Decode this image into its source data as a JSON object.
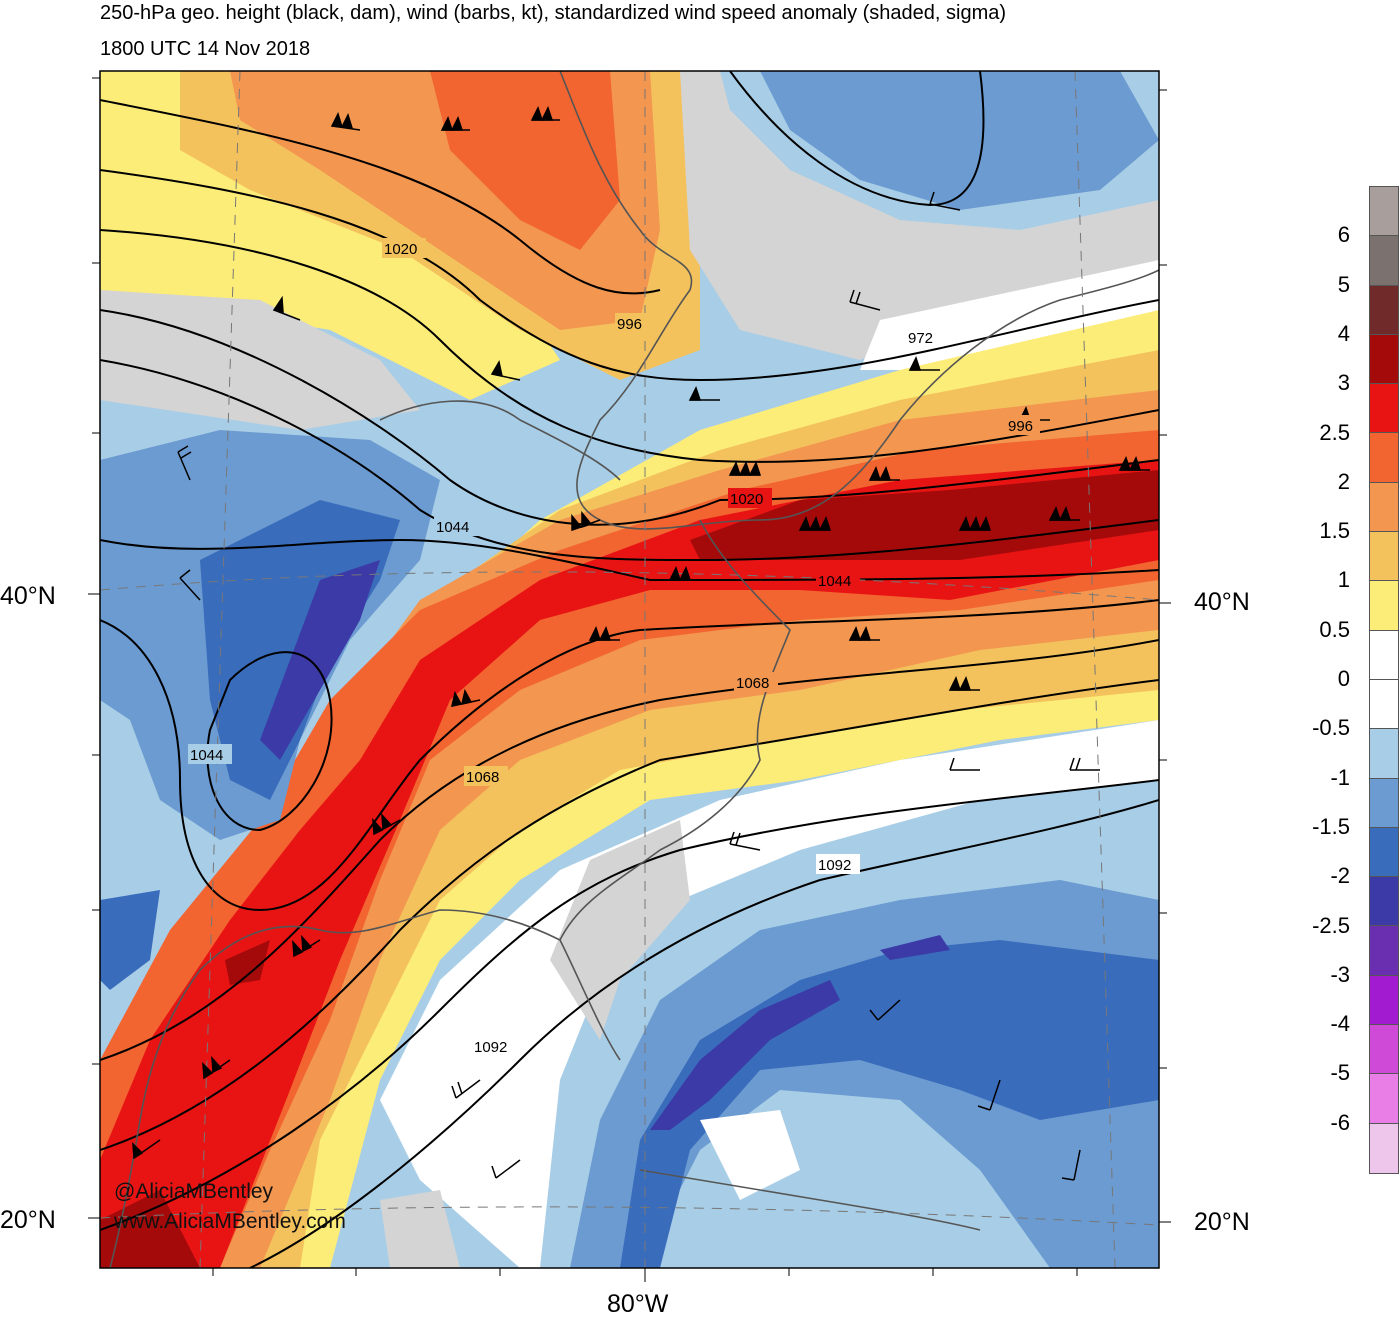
{
  "map": {
    "title": "250-hPa geo. height (black, dam), wind (barbs, kt), standardized wind speed anomaly (shaded, sigma)",
    "valid_time": "1800 UTC 14 Nov 2018",
    "lat_labels": [
      "40°N",
      "20°N"
    ],
    "lon_labels": [
      "80°W"
    ],
    "contour_labels": [
      "1020",
      "996",
      "972",
      "996",
      "1020",
      "1044",
      "1044",
      "1044",
      "1068",
      "1068",
      "1092",
      "1092"
    ],
    "watermark": {
      "handle": "@AliciaMBentley",
      "site": "www.AliciaMBentley.com"
    }
  },
  "colorbar": {
    "labels": [
      "6",
      "5",
      "4",
      "3",
      "2.5",
      "2",
      "1.5",
      "1",
      "0.5",
      "0",
      "-0.5",
      "-1",
      "-1.5",
      "-2",
      "-2.5",
      "-3",
      "-4",
      "-5",
      "-6"
    ],
    "colors": [
      "#a89e9c",
      "#7b716f",
      "#712a2a",
      "#a50a0a",
      "#e81414",
      "#f26430",
      "#f29650",
      "#f4c25c",
      "#fcec78",
      "#ffffff",
      "#ffffff",
      "#a8cde6",
      "#6b9bd1",
      "#3a6cbc",
      "#3b3aa6",
      "#6a2fb0",
      "#a31bd0",
      "#d04ad8",
      "#e87ee6",
      "#eec6ec"
    ]
  }
}
